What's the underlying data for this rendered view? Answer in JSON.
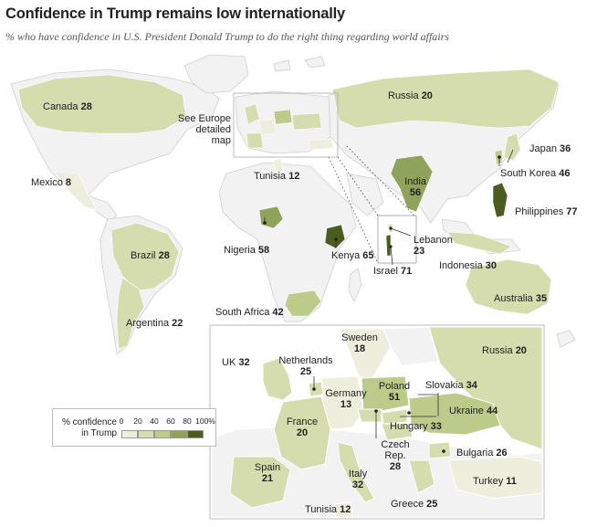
{
  "header": {
    "title": "Confidence in Trump remains low internationally",
    "subtitle": "% who have confidence in U.S. President Donald Trump to do the right thing regarding world affairs"
  },
  "callout": {
    "europe_box_label": "See Europe\ndetailed map"
  },
  "countries": {
    "canada": {
      "name": "Canada",
      "value": "28"
    },
    "mexico": {
      "name": "Mexico",
      "value": "8"
    },
    "brazil": {
      "name": "Brazil",
      "value": "28"
    },
    "argentina": {
      "name": "Argentina",
      "value": "22"
    },
    "russia": {
      "name": "Russia",
      "value": "20"
    },
    "tunisia": {
      "name": "Tunisia",
      "value": "12"
    },
    "nigeria": {
      "name": "Nigeria",
      "value": "58"
    },
    "kenya": {
      "name": "Kenya",
      "value": "65"
    },
    "south_africa": {
      "name": "South Africa",
      "value": "42"
    },
    "india": {
      "name": "India",
      "value": "56"
    },
    "japan": {
      "name": "Japan",
      "value": "36"
    },
    "south_korea": {
      "name": "South Korea",
      "value": "46"
    },
    "philippines": {
      "name": "Philippines",
      "value": "77"
    },
    "indonesia": {
      "name": "Indonesia",
      "value": "30"
    },
    "australia": {
      "name": "Australia",
      "value": "35"
    },
    "lebanon": {
      "name": "Lebanon",
      "value": "23"
    },
    "israel": {
      "name": "Israel",
      "value": "71"
    }
  },
  "europe": {
    "uk": {
      "name": "UK",
      "value": "32"
    },
    "netherlands": {
      "name": "Netherlands",
      "value": "25"
    },
    "sweden": {
      "name": "Sweden",
      "value": "18"
    },
    "russia": {
      "name": "Russia",
      "value": "20"
    },
    "germany": {
      "name": "Germany",
      "value": "13"
    },
    "poland": {
      "name": "Poland",
      "value": "51"
    },
    "slovakia": {
      "name": "Slovakia",
      "value": "34"
    },
    "ukraine": {
      "name": "Ukraine",
      "value": "44"
    },
    "france": {
      "name": "France",
      "value": "20"
    },
    "hungary": {
      "name": "Hungary",
      "value": "33"
    },
    "czech": {
      "name": "Czech\nRep.",
      "value": "28"
    },
    "bulgaria": {
      "name": "Bulgaria",
      "value": "26"
    },
    "spain": {
      "name": "Spain",
      "value": "21"
    },
    "italy": {
      "name": "Italy",
      "value": "32"
    },
    "turkey": {
      "name": "Turkey",
      "value": "11"
    },
    "greece": {
      "name": "Greece",
      "value": "25"
    },
    "tunisia": {
      "name": "Tunisia",
      "value": "12"
    }
  },
  "legend": {
    "title": "% confidence\nin Trump",
    "ticks": [
      "0",
      "20",
      "40",
      "60",
      "80",
      "100%"
    ],
    "colors": [
      "#eeeedc",
      "#d5dcae",
      "#bccb8a",
      "#8fa35a",
      "#4a5d1f"
    ]
  },
  "colors": {
    "no_data": "#f2f2f2",
    "border": "#cfcfcf",
    "ocean": "#ffffff"
  }
}
